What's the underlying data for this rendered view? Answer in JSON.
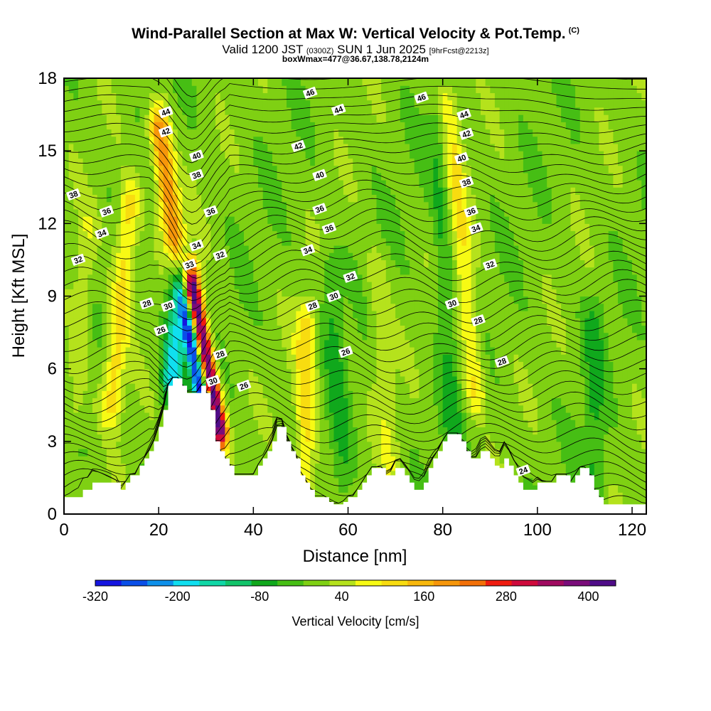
{
  "header": {
    "title": "Wind-Parallel Section at Max W: Vertical Velocity & Pot.Temp.",
    "title_mark": "(C)",
    "valid_prefix": "Valid 1200 JST",
    "valid_utc": "(0300Z)",
    "valid_date": "SUN 1 Jun 2025",
    "forecast": "[9hrFcst@2213z]",
    "box_info": "boxWmax=477@36.67,138.78,2124m"
  },
  "colorbar": {
    "label": "Vertical Velocity [cm/s]",
    "tick_labels": [
      "-320",
      "-200",
      "-80",
      "40",
      "160",
      "280",
      "400"
    ],
    "colors": [
      "#1515e0",
      "#0a4fe8",
      "#0d90ea",
      "#10dff0",
      "#10d7a6",
      "#12c46a",
      "#10a81c",
      "#46be14",
      "#7fd013",
      "#b5e21c",
      "#f7fa14",
      "#f8dc10",
      "#f8b80c",
      "#f6960a",
      "#f37008",
      "#f01c10",
      "#cf0a3c",
      "#a00a60",
      "#7a0c7a",
      "#4f0c88"
    ]
  },
  "chart_data": {
    "type": "heatmap",
    "xlabel": "Distance [nm]",
    "ylabel": "Height [Kft MSL]",
    "xlim": [
      0,
      123
    ],
    "ylim": [
      0,
      18
    ],
    "x_ticks": [
      0,
      20,
      40,
      60,
      80,
      100,
      120
    ],
    "y_ticks": [
      0,
      3,
      6,
      9,
      12,
      15,
      18
    ],
    "field": "Vertical Velocity [cm/s]",
    "field_range": [
      -320,
      440
    ],
    "contours": "Potential Temperature",
    "terrain_kft": [
      [
        0,
        0.7
      ],
      [
        1,
        0.7
      ],
      [
        2,
        0.7
      ],
      [
        3,
        0.7
      ],
      [
        4,
        1.0
      ],
      [
        5,
        1.0
      ],
      [
        6,
        1.3
      ],
      [
        7,
        1.3
      ],
      [
        8,
        1.3
      ],
      [
        9,
        1.3
      ],
      [
        10,
        1.3
      ],
      [
        11,
        1.3
      ],
      [
        12,
        1.0
      ],
      [
        13,
        1.3
      ],
      [
        14,
        1.6
      ],
      [
        15,
        1.6
      ],
      [
        16,
        2.0
      ],
      [
        17,
        2.3
      ],
      [
        18,
        2.6
      ],
      [
        19,
        3.0
      ],
      [
        20,
        3.6
      ],
      [
        21,
        4.3
      ],
      [
        22,
        5.3
      ],
      [
        23,
        5.6
      ],
      [
        24,
        5.6
      ],
      [
        25,
        5.3
      ],
      [
        26,
        5.0
      ],
      [
        27,
        5.0
      ],
      [
        28,
        5.0
      ],
      [
        29,
        5.3
      ],
      [
        30,
        5.0
      ],
      [
        31,
        4.3
      ],
      [
        32,
        3.0
      ],
      [
        33,
        2.6
      ],
      [
        34,
        2.3
      ],
      [
        35,
        2.0
      ],
      [
        36,
        1.6
      ],
      [
        37,
        1.6
      ],
      [
        38,
        1.6
      ],
      [
        39,
        1.6
      ],
      [
        40,
        1.6
      ],
      [
        41,
        2.0
      ],
      [
        42,
        2.3
      ],
      [
        43,
        2.6
      ],
      [
        44,
        3.0
      ],
      [
        45,
        3.6
      ],
      [
        46,
        3.6
      ],
      [
        47,
        3.0
      ],
      [
        48,
        2.6
      ],
      [
        49,
        2.3
      ],
      [
        50,
        1.6
      ],
      [
        51,
        1.3
      ],
      [
        52,
        1.0
      ],
      [
        53,
        0.7
      ],
      [
        54,
        0.7
      ],
      [
        55,
        0.7
      ],
      [
        56,
        0.5
      ],
      [
        57,
        0.4
      ],
      [
        58,
        0.4
      ],
      [
        59,
        0.5
      ],
      [
        60,
        0.7
      ],
      [
        61,
        0.7
      ],
      [
        62,
        1.0
      ],
      [
        63,
        1.3
      ],
      [
        64,
        1.6
      ],
      [
        65,
        1.9
      ],
      [
        66,
        1.9
      ],
      [
        67,
        1.9
      ],
      [
        68,
        1.6
      ],
      [
        69,
        1.6
      ],
      [
        70,
        1.9
      ],
      [
        71,
        1.9
      ],
      [
        72,
        1.6
      ],
      [
        73,
        1.3
      ],
      [
        74,
        1.0
      ],
      [
        75,
        1.0
      ],
      [
        76,
        1.3
      ],
      [
        77,
        1.9
      ],
      [
        78,
        2.3
      ],
      [
        79,
        2.6
      ],
      [
        80,
        3.0
      ],
      [
        81,
        3.3
      ],
      [
        82,
        3.3
      ],
      [
        83,
        3.3
      ],
      [
        84,
        3.0
      ],
      [
        85,
        2.6
      ],
      [
        86,
        2.3
      ],
      [
        87,
        2.3
      ],
      [
        88,
        2.6
      ],
      [
        89,
        2.6
      ],
      [
        90,
        2.3
      ],
      [
        91,
        2.0
      ],
      [
        92,
        1.9
      ],
      [
        93,
        2.3
      ],
      [
        94,
        2.0
      ],
      [
        95,
        1.6
      ],
      [
        96,
        1.3
      ],
      [
        97,
        1.0
      ],
      [
        98,
        1.0
      ],
      [
        99,
        1.0
      ],
      [
        100,
        1.3
      ],
      [
        101,
        1.3
      ],
      [
        102,
        1.3
      ],
      [
        103,
        1.3
      ],
      [
        104,
        1.6
      ],
      [
        105,
        1.6
      ],
      [
        106,
        1.6
      ],
      [
        107,
        1.3
      ],
      [
        108,
        1.6
      ],
      [
        109,
        1.9
      ],
      [
        110,
        1.9
      ],
      [
        111,
        1.6
      ],
      [
        112,
        1.0
      ],
      [
        113,
        0.7
      ],
      [
        114,
        0.4
      ],
      [
        115,
        0.4
      ],
      [
        116,
        0.4
      ],
      [
        117,
        0.4
      ],
      [
        118,
        0.4
      ],
      [
        119,
        0.4
      ],
      [
        120,
        0.4
      ],
      [
        121,
        0.4
      ],
      [
        122,
        0.4
      ],
      [
        123,
        0.4
      ]
    ],
    "updrafts": [
      {
        "x": 10,
        "x_top": 14,
        "y0": 4.5,
        "y1": 13,
        "w": 120
      },
      {
        "x": 33,
        "x_top": 27,
        "y0": 3.5,
        "y1": 9.5,
        "w": 440
      },
      {
        "x": 25,
        "x_top": 20,
        "y0": 9,
        "y1": 16,
        "w": 220
      },
      {
        "x": 51,
        "x_top": 51,
        "y0": 1.5,
        "y1": 8,
        "w": 120
      },
      {
        "x": 87,
        "x_top": 81,
        "y0": 5,
        "y1": 17,
        "w": 100
      },
      {
        "x": 69,
        "x_top": 66,
        "y0": 2,
        "y1": 10,
        "w": 50
      },
      {
        "x": 2,
        "x_top": 5,
        "y0": 4,
        "y1": 12,
        "w": 50
      }
    ],
    "downdrafts": [
      {
        "x": 23,
        "x_top": 24,
        "y0": 5.5,
        "y1": 10,
        "w": -200
      },
      {
        "x": 29.5,
        "x_top": 25,
        "y0": 4.5,
        "y1": 9,
        "w": -320
      },
      {
        "x": 59,
        "x_top": 56,
        "y0": 1.5,
        "y1": 10,
        "w": -60
      },
      {
        "x": 82,
        "x_top": 79,
        "y0": 3.5,
        "y1": 16,
        "w": -60
      },
      {
        "x": 112,
        "x_top": 112,
        "y0": 1,
        "y1": 8,
        "w": -60
      }
    ],
    "theta_contour_labels": [
      {
        "text": "46",
        "x": 52,
        "y": 17.4
      },
      {
        "text": "46",
        "x": 75.5,
        "y": 17.2
      },
      {
        "text": "44",
        "x": 21.5,
        "y": 16.6
      },
      {
        "text": "44",
        "x": 58,
        "y": 16.7
      },
      {
        "text": "44",
        "x": 84.5,
        "y": 16.5
      },
      {
        "text": "42",
        "x": 21.5,
        "y": 15.8
      },
      {
        "text": "42",
        "x": 49.5,
        "y": 15.2
      },
      {
        "text": "42",
        "x": 85,
        "y": 15.7
      },
      {
        "text": "40",
        "x": 28,
        "y": 14.8
      },
      {
        "text": "40",
        "x": 54,
        "y": 14.0
      },
      {
        "text": "40",
        "x": 84,
        "y": 14.7
      },
      {
        "text": "38",
        "x": 2,
        "y": 13.2
      },
      {
        "text": "38",
        "x": 28,
        "y": 14.0
      },
      {
        "text": "38",
        "x": 85,
        "y": 13.7
      },
      {
        "text": "36",
        "x": 9,
        "y": 12.5
      },
      {
        "text": "36",
        "x": 31,
        "y": 12.5
      },
      {
        "text": "36",
        "x": 54,
        "y": 12.6
      },
      {
        "text": "36",
        "x": 56,
        "y": 11.8
      },
      {
        "text": "36",
        "x": 86,
        "y": 12.5
      },
      {
        "text": "34",
        "x": 8,
        "y": 11.6
      },
      {
        "text": "34",
        "x": 28,
        "y": 11.1
      },
      {
        "text": "34",
        "x": 51.5,
        "y": 10.9
      },
      {
        "text": "34",
        "x": 87,
        "y": 11.8
      },
      {
        "text": "33",
        "x": 26.5,
        "y": 10.3
      },
      {
        "text": "32",
        "x": 3,
        "y": 10.5
      },
      {
        "text": "32",
        "x": 33,
        "y": 10.7
      },
      {
        "text": "32",
        "x": 60.5,
        "y": 9.8
      },
      {
        "text": "32",
        "x": 90,
        "y": 10.3
      },
      {
        "text": "30",
        "x": 22,
        "y": 8.6
      },
      {
        "text": "30",
        "x": 57,
        "y": 9.0
      },
      {
        "text": "30",
        "x": 82,
        "y": 8.7
      },
      {
        "text": "30",
        "x": 31.5,
        "y": 5.5
      },
      {
        "text": "28",
        "x": 17.5,
        "y": 8.7
      },
      {
        "text": "28",
        "x": 52.5,
        "y": 8.6
      },
      {
        "text": "28",
        "x": 87.5,
        "y": 8.0
      },
      {
        "text": "28",
        "x": 33,
        "y": 6.6
      },
      {
        "text": "28",
        "x": 92.5,
        "y": 6.3
      },
      {
        "text": "26",
        "x": 20.5,
        "y": 7.6
      },
      {
        "text": "26",
        "x": 59.5,
        "y": 6.7
      },
      {
        "text": "26",
        "x": 38,
        "y": 5.3
      },
      {
        "text": "24",
        "x": 97,
        "y": 1.8
      }
    ]
  }
}
